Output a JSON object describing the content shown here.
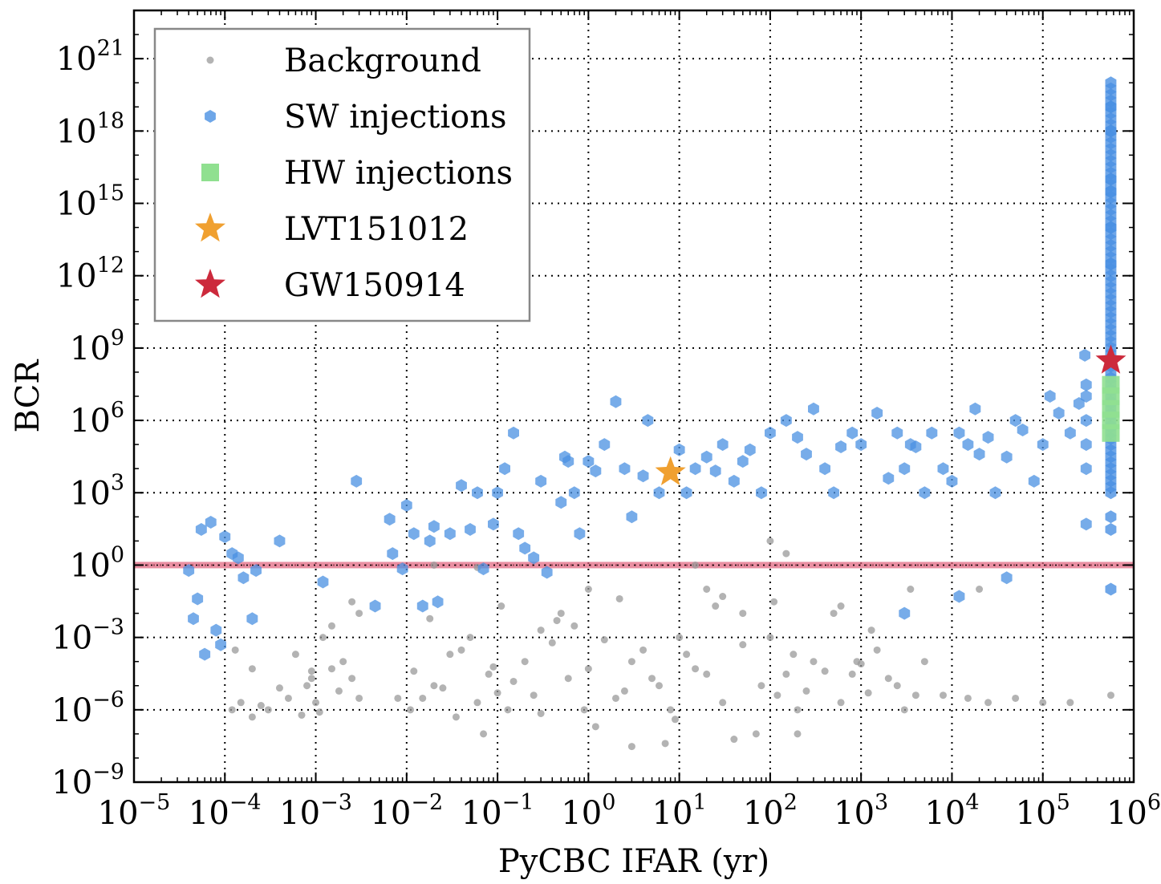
{
  "chart_data": {
    "type": "scatter",
    "xlabel": "PyCBC IFAR (yr)",
    "ylabel": "BCR",
    "x_scale": "log",
    "y_scale": "log",
    "xlim": [
      1e-05,
      1000000.0
    ],
    "ylim": [
      1e-09,
      1e+23
    ],
    "x_tick_exponents": [
      -5,
      -4,
      -3,
      -2,
      -1,
      0,
      1,
      2,
      3,
      4,
      5,
      6
    ],
    "y_tick_exponents": [
      -9,
      -6,
      -3,
      0,
      3,
      6,
      9,
      12,
      15,
      18,
      21
    ],
    "grid": true,
    "legend_position": "top-left",
    "threshold_line": {
      "y": 1,
      "color": "#e0607a"
    },
    "colors": {
      "background": "#9a9a9a",
      "sw_injections": "#4a90e2",
      "hw_injections": "#90e090",
      "lvt151012": "#f0a030",
      "gw150914": "#cc2a3c"
    },
    "series": [
      {
        "name": "Background",
        "marker": "dot",
        "points": [
          [
            0.00012,
            1e-06
          ],
          [
            0.00015,
            2e-06
          ],
          [
            0.0002,
            5e-07
          ],
          [
            0.0003,
            1e-06
          ],
          [
            0.0005,
            3e-06
          ],
          [
            0.0008,
            1e-05
          ],
          [
            0.001,
            2e-06
          ],
          [
            0.0015,
            5e-05
          ],
          [
            0.002,
            0.0001
          ],
          [
            0.003,
            3e-06
          ],
          [
            0.00013,
            0.0003
          ],
          [
            0.0004,
            8e-06
          ],
          [
            0.0006,
            0.0002
          ],
          [
            0.0009,
            4e-05
          ],
          [
            0.0012,
            0.001
          ],
          [
            0.0018,
            6e-06
          ],
          [
            0.0025,
            2e-05
          ],
          [
            0.0007,
            6e-07
          ],
          [
            0.00025,
            1.5e-06
          ],
          [
            0.0011,
            8e-07
          ],
          [
            0.011,
            1e-06
          ],
          [
            0.015,
            3e-06
          ],
          [
            0.02,
            1e-05
          ],
          [
            0.03,
            0.0002
          ],
          [
            0.05,
            0.001
          ],
          [
            0.08,
            3e-05
          ],
          [
            0.1,
            5e-06
          ],
          [
            0.13,
            1e-06
          ],
          [
            0.2,
            0.0001
          ],
          [
            0.3,
            0.002
          ],
          [
            0.012,
            4e-05
          ],
          [
            0.025,
            8e-06
          ],
          [
            0.04,
            0.0003
          ],
          [
            0.06,
            2e-06
          ],
          [
            0.09,
            6e-05
          ],
          [
            0.15,
            1.5e-05
          ],
          [
            0.25,
            4e-06
          ],
          [
            0.4,
            0.0006
          ],
          [
            0.6,
            2e-05
          ],
          [
            0.9,
            1e-06
          ],
          [
            0.5,
            0.01
          ],
          [
            0.7,
            0.003
          ],
          [
            1.0,
            5e-05
          ],
          [
            1.5,
            0.0008
          ],
          [
            2.0,
            3e-06
          ],
          [
            3.0,
            0.0001
          ],
          [
            5.0,
            2e-05
          ],
          [
            8.0,
            1e-06
          ],
          [
            10,
            0.001
          ],
          [
            15,
            5e-05
          ],
          [
            1.2,
            2e-07
          ],
          [
            2.5,
            6e-06
          ],
          [
            4.0,
            0.0003
          ],
          [
            6.0,
            1e-05
          ],
          [
            9.0,
            4e-07
          ],
          [
            12,
            0.0002
          ],
          [
            20,
            3e-05
          ],
          [
            30,
            2e-06
          ],
          [
            50,
            0.0005
          ],
          [
            80,
            1e-05
          ],
          [
            20,
            0.1
          ],
          [
            30,
            0.05
          ],
          [
            50,
            0.01
          ],
          [
            70,
            1e-07
          ],
          [
            100,
            0.001
          ],
          [
            150,
            3e-05
          ],
          [
            200,
            1e-06
          ],
          [
            300,
            0.0001
          ],
          [
            500,
            0.01
          ],
          [
            800,
            3e-05
          ],
          [
            120,
            4e-06
          ],
          [
            180,
            0.0002
          ],
          [
            250,
            6e-06
          ],
          [
            400,
            4e-05
          ],
          [
            600,
            2e-06
          ],
          [
            900,
            0.0001
          ],
          [
            1200,
            5e-06
          ],
          [
            1500,
            0.0003
          ],
          [
            2000,
            2e-05
          ],
          [
            3000,
            1e-06
          ],
          [
            1000,
            8e-05
          ],
          [
            1300,
            0.002
          ],
          [
            2500,
            1e-05
          ],
          [
            4000,
            4e-06
          ],
          [
            5000,
            0.0001
          ],
          [
            8000,
            4e-06
          ],
          [
            15000,
            3e-06
          ],
          [
            25000,
            2e-06
          ],
          [
            50000,
            3e-06
          ],
          [
            100000,
            2e-06
          ],
          [
            200000,
            2e-06
          ],
          [
            560000,
            4e-06
          ],
          [
            0.003,
            0.01
          ],
          [
            0.0025,
            0.03
          ],
          [
            0.02,
            1
          ],
          [
            0.06,
            0.8
          ],
          [
            1,
            0.1
          ],
          [
            15,
            1
          ],
          [
            100,
            10
          ],
          [
            150,
            3
          ],
          [
            0.0002,
            5e-05
          ],
          [
            0.0009,
            2e-05
          ],
          [
            0.008,
            3e-06
          ],
          [
            0.035,
            5e-07
          ],
          [
            0.07,
            1e-07
          ],
          [
            0.3,
            7e-07
          ],
          [
            3,
            3e-08
          ],
          [
            7,
            4e-08
          ],
          [
            40,
            6e-08
          ],
          [
            200,
            1e-07
          ],
          [
            0.0015,
            0.003
          ],
          [
            0.018,
            0.006
          ],
          [
            0.11,
            0.02
          ],
          [
            0.45,
            0.005
          ],
          [
            2.2,
            0.04
          ],
          [
            25,
            0.02
          ],
          [
            110,
            0.03
          ],
          [
            600,
            0.02
          ],
          [
            3500,
            0.1
          ],
          [
            20000,
            0.1
          ]
        ]
      },
      {
        "name": "SW injections",
        "marker": "hexagon",
        "points": [
          [
            4e-05,
            0.6
          ],
          [
            4.5e-05,
            0.006
          ],
          [
            5e-05,
            0.04
          ],
          [
            5.5e-05,
            30
          ],
          [
            6e-05,
            0.0002
          ],
          [
            7e-05,
            60
          ],
          [
            8e-05,
            0.002
          ],
          [
            9e-05,
            0.0005
          ],
          [
            0.0001,
            15
          ],
          [
            0.00012,
            3
          ],
          [
            0.00014,
            2
          ],
          [
            0.00016,
            0.3
          ],
          [
            0.0002,
            0.006
          ],
          [
            0.00022,
            0.6
          ],
          [
            0.0004,
            10
          ],
          [
            0.0028,
            3000.0
          ],
          [
            0.0065,
            80
          ],
          [
            0.007,
            3
          ],
          [
            0.009,
            0.7
          ],
          [
            0.01,
            300
          ],
          [
            0.012,
            20
          ],
          [
            0.015,
            0.02
          ],
          [
            0.018,
            10
          ],
          [
            0.02,
            40
          ],
          [
            0.022,
            0.03
          ],
          [
            0.03,
            20
          ],
          [
            0.04,
            2000.0
          ],
          [
            0.05,
            30
          ],
          [
            0.06,
            1000.0
          ],
          [
            0.07,
            0.7
          ],
          [
            0.09,
            50
          ],
          [
            0.1,
            1000.0
          ],
          [
            0.12,
            10000.0
          ],
          [
            0.15,
            300000.0
          ],
          [
            0.17,
            20
          ],
          [
            0.2,
            5
          ],
          [
            0.25,
            2
          ],
          [
            0.3,
            3000.0
          ],
          [
            0.35,
            0.5
          ],
          [
            0.5,
            400
          ],
          [
            0.55,
            30000.0
          ],
          [
            0.6,
            20000.0
          ],
          [
            0.7,
            1000.0
          ],
          [
            0.8,
            20
          ],
          [
            1.0,
            20000.0
          ],
          [
            1.2,
            8000.0
          ],
          [
            1.5,
            100000.0
          ],
          [
            2.0,
            6000000.0
          ],
          [
            2.5,
            10000.0
          ],
          [
            3.0,
            100.0
          ],
          [
            4.0,
            5000.0
          ],
          [
            4.5,
            1000000.0
          ],
          [
            6.0,
            1000.0
          ],
          [
            10,
            60000.0
          ],
          [
            12,
            1000.0
          ],
          [
            15,
            10000.0
          ],
          [
            20,
            30000.0
          ],
          [
            25,
            8000.0
          ],
          [
            30,
            100000.0
          ],
          [
            40,
            3000.0
          ],
          [
            50,
            20000.0
          ],
          [
            60,
            60000.0
          ],
          [
            80,
            1000.0
          ],
          [
            100,
            300000.0
          ],
          [
            150,
            1000000.0
          ],
          [
            200,
            200000.0
          ],
          [
            250,
            40000.0
          ],
          [
            300,
            3000000.0
          ],
          [
            400,
            10000.0
          ],
          [
            500,
            1000.0
          ],
          [
            600,
            80000.0
          ],
          [
            800,
            300000.0
          ],
          [
            1000,
            100000.0
          ],
          [
            1500,
            2000000.0
          ],
          [
            2000,
            4000.0
          ],
          [
            2500,
            300000.0
          ],
          [
            3000,
            10000.0
          ],
          [
            3500,
            100000.0
          ],
          [
            4000,
            80000.0
          ],
          [
            5000,
            1000.0
          ],
          [
            6000,
            300000.0
          ],
          [
            8000,
            10000.0
          ],
          [
            10000,
            3000.0
          ],
          [
            12000,
            300000.0
          ],
          [
            15000,
            100000.0
          ],
          [
            18000,
            3000000.0
          ],
          [
            20000,
            40000.0
          ],
          [
            25000,
            200000.0
          ],
          [
            30000,
            1000.0
          ],
          [
            40000,
            30000.0
          ],
          [
            50000,
            1000000.0
          ],
          [
            60000,
            400000.0
          ],
          [
            80000,
            3000.0
          ],
          [
            100000,
            100000.0
          ],
          [
            120000,
            10000000.0
          ],
          [
            150000,
            2000000.0
          ],
          [
            200000,
            300000.0
          ],
          [
            250000,
            5000000.0
          ],
          [
            290000,
            500000000.0
          ],
          [
            300000,
            10000.0
          ],
          [
            300000,
            100000.0
          ],
          [
            300000,
            1000000.0
          ],
          [
            300000,
            10000000.0
          ],
          [
            300000,
            30000000.0
          ],
          [
            300000,
            50
          ],
          [
            0.0012,
            0.2
          ],
          [
            0.0045,
            0.02
          ],
          [
            3000,
            0.01
          ],
          [
            12000,
            0.05
          ],
          [
            40000,
            0.3
          ]
        ]
      },
      {
        "name": "HW injections",
        "marker": "square",
        "points": [
          [
            560000,
            300000.0
          ],
          [
            560000,
            1000000.0
          ],
          [
            560000,
            3000000.0
          ],
          [
            560000,
            10000000.0
          ],
          [
            560000,
            30000000.0
          ]
        ]
      },
      {
        "name": "LVT151012",
        "marker": "star",
        "points": [
          [
            8.0,
            7000.0
          ]
        ]
      },
      {
        "name": "GW150914",
        "marker": "star",
        "points": [
          [
            560000,
            300000000.0
          ]
        ]
      }
    ],
    "sw_column": {
      "x": 560000,
      "y_from": 1000.0,
      "y_to": 1e+20,
      "extra_y": [
        1e+19,
        1e+18,
        1e+16,
        3000000000000000.0,
        100000000000000.0,
        3000000000000.0,
        100.0,
        30.0,
        0.1
      ]
    }
  }
}
